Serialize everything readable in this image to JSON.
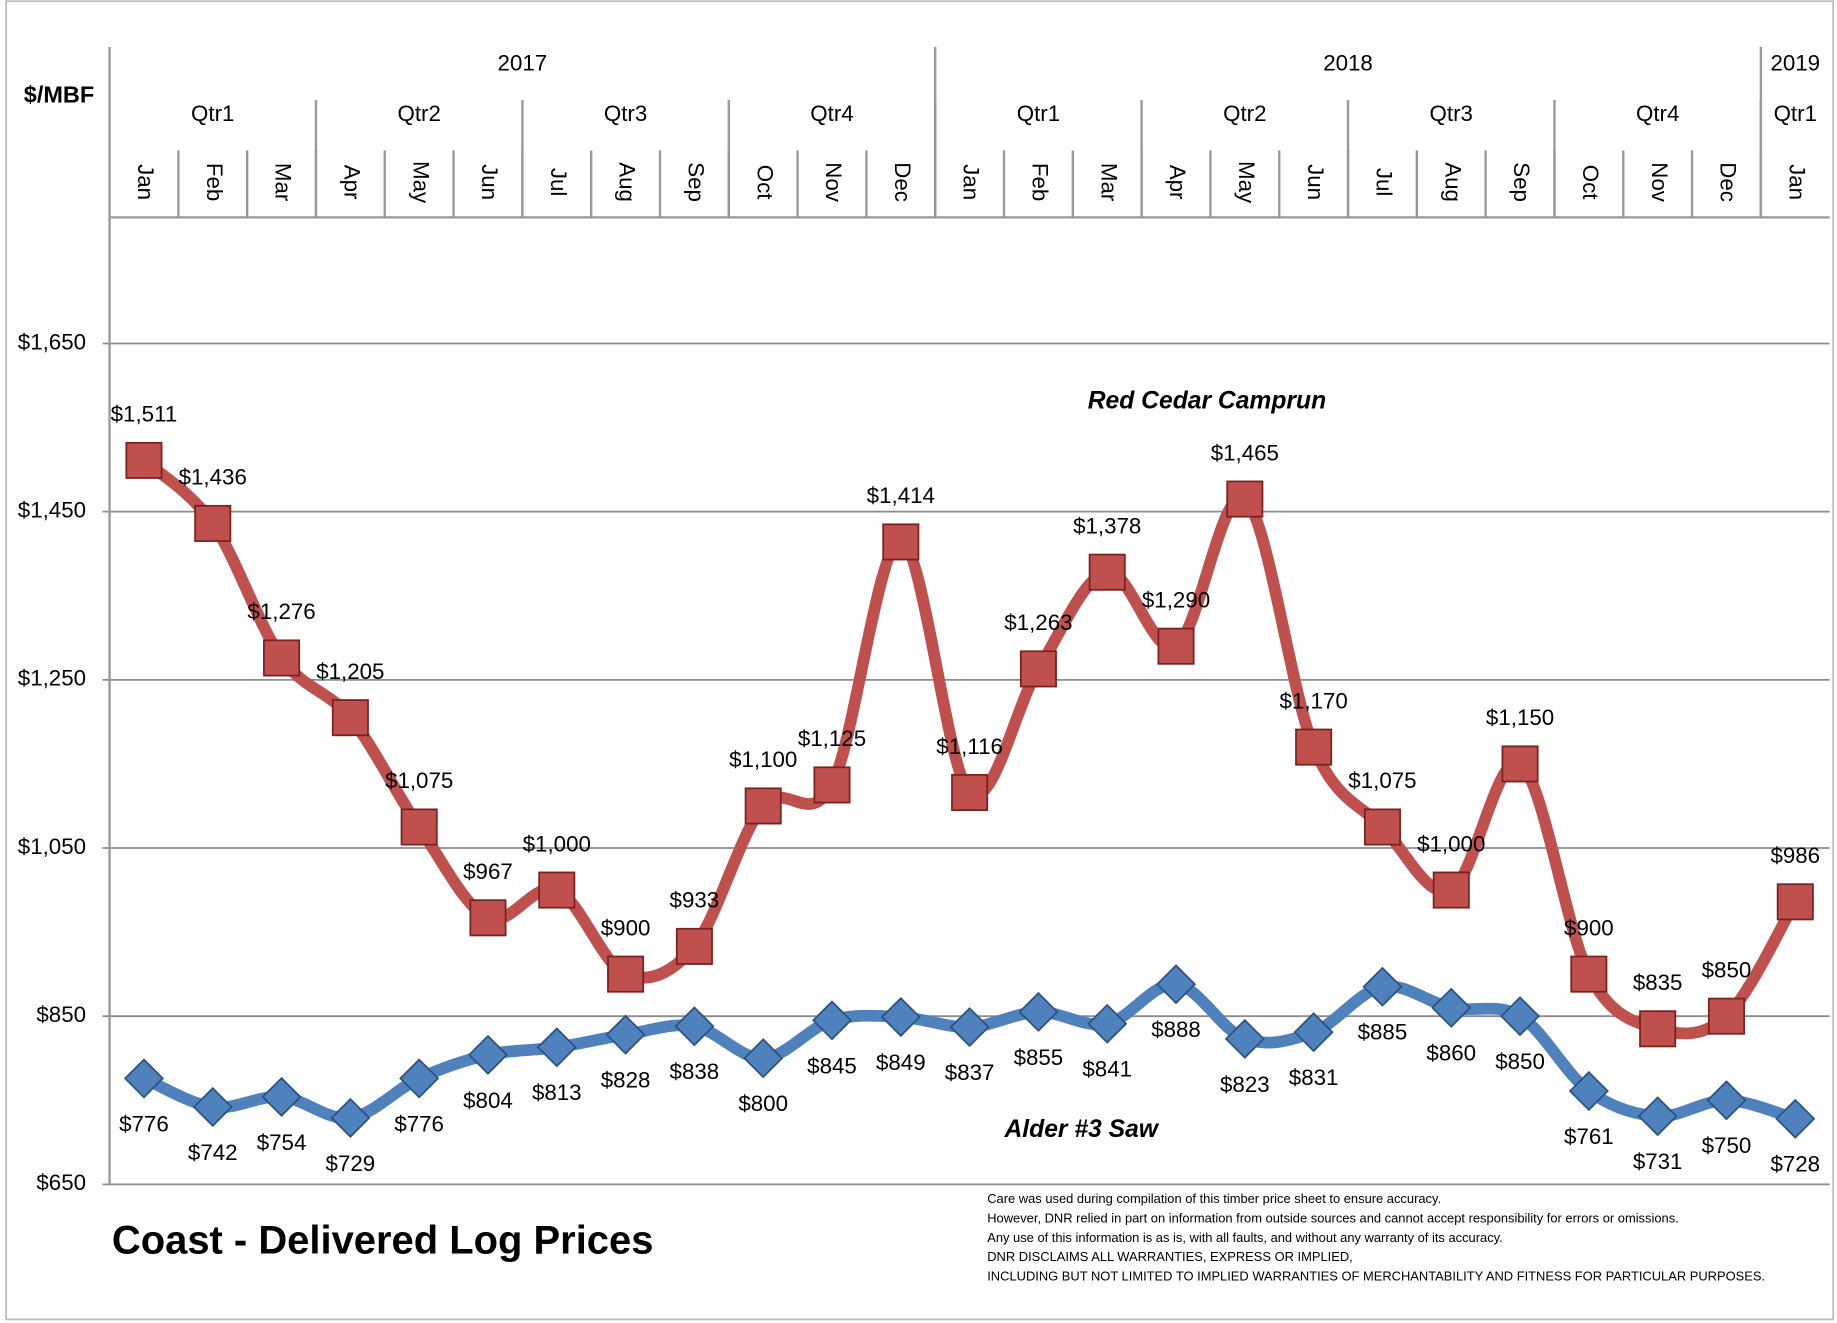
{
  "chart_data": {
    "type": "line",
    "title": "Coast - Delivered Log Prices",
    "ylabel": "$/MBF",
    "categories": [
      "Jan",
      "Feb",
      "Mar",
      "Apr",
      "May",
      "Jun",
      "Jul",
      "Aug",
      "Sep",
      "Oct",
      "Nov",
      "Dec",
      "Jan",
      "Feb",
      "Mar",
      "Apr",
      "May",
      "Jun",
      "Jul",
      "Aug",
      "Sep",
      "Oct",
      "Nov",
      "Dec",
      "Jan"
    ],
    "periods": [
      {
        "year": "2017",
        "quarters": [
          "Qtr1",
          "Qtr2",
          "Qtr3",
          "Qtr4"
        ]
      },
      {
        "year": "2018",
        "quarters": [
          "Qtr1",
          "Qtr2",
          "Qtr3",
          "Qtr4"
        ]
      },
      {
        "year": "2019",
        "quarters": [
          "Qtr1"
        ]
      }
    ],
    "series": [
      {
        "name": "Red Cedar Camprun",
        "color": "#c0504d",
        "marker": "square",
        "values": [
          1511,
          1436,
          1276,
          1205,
          1075,
          967,
          1000,
          900,
          933,
          1100,
          1125,
          1414,
          1116,
          1263,
          1378,
          1290,
          1465,
          1170,
          1075,
          1000,
          1150,
          900,
          835,
          850,
          986
        ],
        "value_labels": [
          "$1,511",
          "$1,436",
          "$1,276",
          "$1,205",
          "$1,075",
          "$967",
          "$1,000",
          "$900",
          "$933",
          "$1,100",
          "$1,125",
          "$1,414",
          "$1,116",
          "$1,263",
          "$1,378",
          "$1,290",
          "$1,465",
          "$1,170",
          "$1,075",
          "$1,000",
          "$1,150",
          "$900",
          "$835",
          "$850",
          "$986"
        ]
      },
      {
        "name": "Alder #3 Saw",
        "color": "#4f81bd",
        "marker": "diamond",
        "values": [
          776,
          742,
          754,
          729,
          776,
          804,
          813,
          828,
          838,
          800,
          845,
          849,
          837,
          855,
          841,
          888,
          823,
          831,
          885,
          860,
          850,
          761,
          731,
          750,
          728
        ],
        "value_labels": [
          "$776",
          "$742",
          "$754",
          "$729",
          "$776",
          "$804",
          "$813",
          "$828",
          "$838",
          "$800",
          "$845",
          "$849",
          "$837",
          "$855",
          "$841",
          "$888",
          "$823",
          "$831",
          "$885",
          "$860",
          "$850",
          "$761",
          "$731",
          "$750",
          "$728"
        ]
      }
    ],
    "ylim": [
      650,
      1800
    ],
    "yticks": [
      {
        "value": 650,
        "label": "$650"
      },
      {
        "value": 850,
        "label": "$850"
      },
      {
        "value": 1050,
        "label": "$1,050"
      },
      {
        "value": 1250,
        "label": "$1,250"
      },
      {
        "value": 1450,
        "label": "$1,450"
      },
      {
        "value": 1650,
        "label": "$1,650"
      }
    ],
    "grid": true,
    "disclaimer": [
      "Care was used during compilation of this timber price sheet to ensure accuracy.",
      "However, DNR relied in part on information from outside sources and cannot accept responsibility for errors or omissions.",
      "Any use of this information is as is, with all faults, and without any warranty of its accuracy.",
      "DNR DISCLAIMS ALL WARRANTIES, EXPRESS OR IMPLIED,",
      "INCLUDING BUT NOT LIMITED TO IMPLIED WARRANTIES OF MERCHANTABILITY AND FITNESS FOR PARTICULAR PURPOSES."
    ]
  }
}
